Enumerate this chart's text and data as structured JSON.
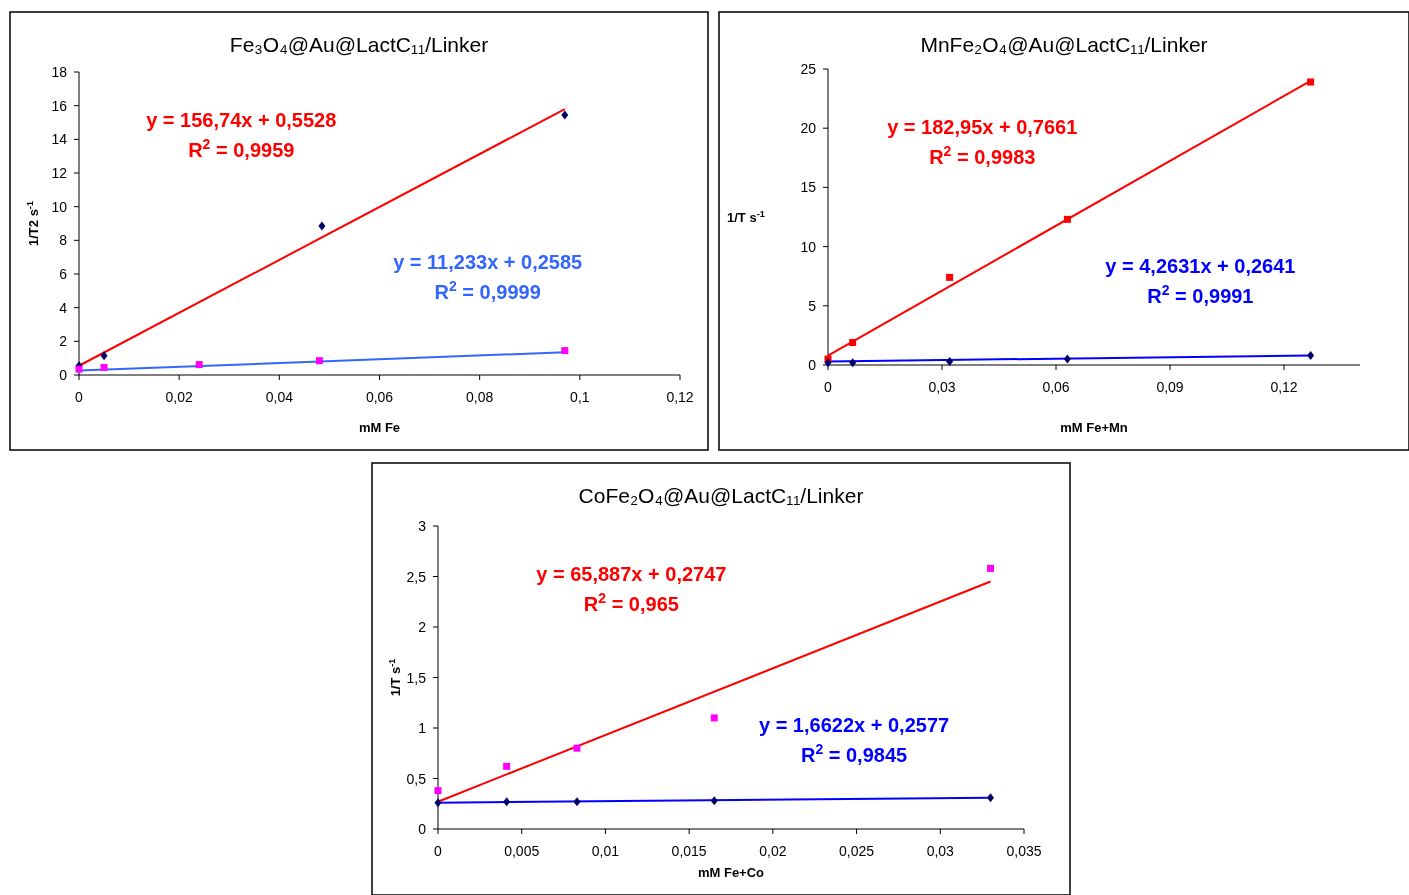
{
  "chart_data": [
    {
      "type": "scatter",
      "title": "Fe₃O₄@Au@LactC₁₁/Linker",
      "xlabel": "mM Fe",
      "ylabel": "1/T2 s$^{-1}$",
      "xlim": [
        0,
        0.12
      ],
      "xticks": [
        {
          "value": 0,
          "label": "0"
        },
        {
          "value": 0.02,
          "label": "0,02"
        },
        {
          "value": 0.04,
          "label": "0,04"
        },
        {
          "value": 0.06,
          "label": "0,06"
        },
        {
          "value": 0.08,
          "label": "0,08"
        },
        {
          "value": 0.1,
          "label": "0,1"
        },
        {
          "value": 0.12,
          "label": "0,12"
        }
      ],
      "ylim": [
        0,
        18
      ],
      "yticks": [
        0,
        2,
        4,
        6,
        8,
        10,
        12,
        14,
        16,
        18
      ],
      "series": [
        {
          "type": "scatter",
          "marker": "diamond",
          "color": "#000066",
          "x": [
            0,
            0.005,
            0.0485,
            0.097
          ],
          "values": [
            0.55,
            1.15,
            8.85,
            15.45
          ]
        },
        {
          "type": "scatter",
          "marker": "square",
          "color": "#ff00ff",
          "x": [
            0,
            0.005,
            0.024,
            0.048,
            0.097
          ],
          "values": [
            0.35,
            0.45,
            0.62,
            0.85,
            1.45
          ]
        },
        {
          "type": "line",
          "color": "#ff0000",
          "x": [
            0,
            0.097
          ],
          "values": [
            0.55,
            15.8
          ]
        },
        {
          "type": "line",
          "color": "#3366ff",
          "x": [
            0,
            0.097
          ],
          "values": [
            0.26,
            1.35
          ]
        }
      ],
      "annotations": [
        "y = 156,74x + 0,5528",
        "R$^{2}$ = 0,9959",
        "y = 11,233x + 0,2585",
        "R$^{2}$ = 0,9999"
      ]
    },
    {
      "type": "scatter",
      "title": "MnFe₂O₄@Au@LactC₁₁/Linker",
      "xlabel": "mM Fe+Mn",
      "ylabel": "1/T s$^{-1}$",
      "xlim": [
        0,
        0.14
      ],
      "xticks": [
        {
          "value": 0,
          "label": "0"
        },
        {
          "value": 0.03,
          "label": "0,03"
        },
        {
          "value": 0.06,
          "label": "0,06"
        },
        {
          "value": 0.09,
          "label": "0,09"
        },
        {
          "value": 0.12,
          "label": "0,12"
        }
      ],
      "ylim": [
        0,
        25
      ],
      "yticks": [
        0,
        5,
        10,
        15,
        20,
        25
      ],
      "series": [
        {
          "type": "scatter",
          "marker": "square",
          "color": "#ff0000",
          "x": [
            0,
            0.0065,
            0.032,
            0.063,
            0.127
          ],
          "values": [
            0.5,
            1.9,
            7.4,
            12.3,
            23.9
          ]
        },
        {
          "type": "scatter",
          "marker": "diamond",
          "color": "#000066",
          "x": [
            0,
            0.0065,
            0.032,
            0.063,
            0.127
          ],
          "values": [
            0.2,
            0.2,
            0.3,
            0.5,
            0.8
          ]
        },
        {
          "type": "line",
          "color": "#ff0000",
          "x": [
            0,
            0.127
          ],
          "values": [
            0.8,
            24
          ]
        },
        {
          "type": "line",
          "color": "#0000ff",
          "x": [
            0,
            0.127
          ],
          "values": [
            0.3,
            0.8
          ]
        }
      ],
      "annotations": [
        "y = 182,95x + 0,7661",
        "R$^{2}$ = 0,9983",
        "y = 4,2631x + 0,2641",
        "R$^{2}$ = 0,9991"
      ]
    },
    {
      "type": "scatter",
      "title": "CoFe₂O₄@Au@LactC₁₁/Linker",
      "xlabel": "mM Fe+Co",
      "ylabel": "1/T s$^{-1}$",
      "xlim": [
        0,
        0.035
      ],
      "xticks": [
        {
          "value": 0,
          "label": "0"
        },
        {
          "value": 0.005,
          "label": "0,005"
        },
        {
          "value": 0.01,
          "label": "0,01"
        },
        {
          "value": 0.015,
          "label": "0,015"
        },
        {
          "value": 0.02,
          "label": "0,02"
        },
        {
          "value": 0.025,
          "label": "0,025"
        },
        {
          "value": 0.03,
          "label": "0,03"
        },
        {
          "value": 0.035,
          "label": "0,035"
        }
      ],
      "ylim": [
        0,
        3
      ],
      "yticks": [
        0,
        {
          "value": 0.5,
          "label": "0,5"
        },
        1,
        {
          "value": 1.5,
          "label": "1,5"
        },
        2,
        {
          "value": 2.5,
          "label": "2,5"
        },
        3
      ],
      "series": [
        {
          "type": "scatter",
          "marker": "square",
          "color": "#ff00ff",
          "x": [
            0,
            0.0041,
            0.0083,
            0.0165,
            0.033
          ],
          "values": [
            0.38,
            0.62,
            0.8,
            1.1,
            2.58
          ]
        },
        {
          "type": "scatter",
          "marker": "diamond",
          "color": "#000066",
          "x": [
            0,
            0.0041,
            0.0083,
            0.0165,
            0.033
          ],
          "values": [
            0.26,
            0.27,
            0.27,
            0.28,
            0.31
          ]
        },
        {
          "type": "line",
          "color": "#ff0000",
          "x": [
            0,
            0.033
          ],
          "values": [
            0.27,
            2.45
          ]
        },
        {
          "type": "line",
          "color": "#0000ff",
          "x": [
            0,
            0.033
          ],
          "values": [
            0.26,
            0.31
          ]
        }
      ],
      "annotations": [
        "y = 65,887x + 0,2747",
        "R$^{2}$ = 0,965",
        "y = 1,6622x + 0,2577",
        "R$^{2}$ = 0,9845"
      ]
    }
  ]
}
